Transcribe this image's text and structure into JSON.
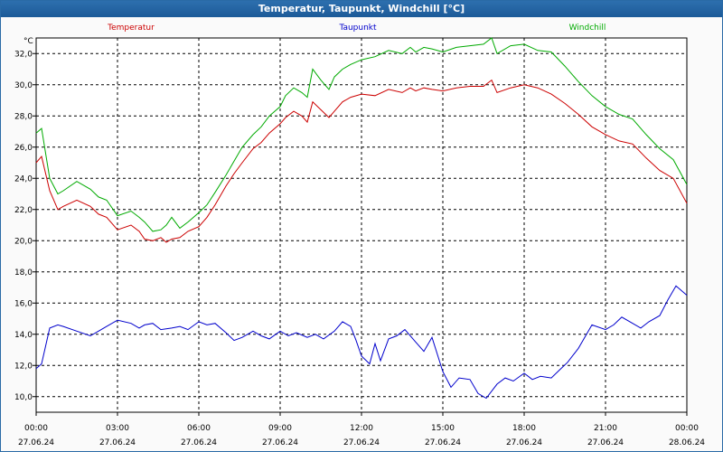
{
  "window": {
    "title": "Temperatur, Taupunkt, Windchill [°C]"
  },
  "chart_data": {
    "type": "line",
    "title": "Temperatur, Taupunkt, Windchill [°C]",
    "ylabel": "°C",
    "ylim": [
      9.0,
      33.0
    ],
    "y_ticks": [
      "10,0",
      "12,0",
      "14,0",
      "16,0",
      "18,0",
      "20,0",
      "22,0",
      "24,0",
      "26,0",
      "28,0",
      "30,0",
      "32,0"
    ],
    "y_tick_values": [
      10,
      12,
      14,
      16,
      18,
      20,
      22,
      24,
      26,
      28,
      30,
      32
    ],
    "xlim": [
      0,
      24
    ],
    "x_tick_values": [
      0,
      3,
      6,
      9,
      12,
      15,
      18,
      21,
      24
    ],
    "x_ticks": [
      {
        "time": "00:00",
        "date": "27.06.24"
      },
      {
        "time": "03:00",
        "date": "27.06.24"
      },
      {
        "time": "06:00",
        "date": "27.06.24"
      },
      {
        "time": "09:00",
        "date": "27.06.24"
      },
      {
        "time": "12:00",
        "date": "27.06.24"
      },
      {
        "time": "15:00",
        "date": "27.06.24"
      },
      {
        "time": "18:00",
        "date": "27.06.24"
      },
      {
        "time": "21:00",
        "date": "27.06.24"
      },
      {
        "time": "00:00",
        "date": "28.06.24"
      }
    ],
    "grid": true,
    "legend_position": "top",
    "series": [
      {
        "name": "Temperatur",
        "color": "#cc0000",
        "x": [
          0,
          0.2,
          0.5,
          0.8,
          1.0,
          1.5,
          2.0,
          2.3,
          2.6,
          3.0,
          3.5,
          3.8,
          4.0,
          4.3,
          4.6,
          4.8,
          5.0,
          5.3,
          5.6,
          6.0,
          6.3,
          6.6,
          7.0,
          7.3,
          7.6,
          8.0,
          8.3,
          8.6,
          9.0,
          9.2,
          9.5,
          9.8,
          10.0,
          10.2,
          10.5,
          10.8,
          11.0,
          11.3,
          11.6,
          12.0,
          12.5,
          13.0,
          13.5,
          13.8,
          14.0,
          14.3,
          14.6,
          15.0,
          15.5,
          16.0,
          16.5,
          16.8,
          17.0,
          17.5,
          18.0,
          18.5,
          19.0,
          19.5,
          20.0,
          20.5,
          21.0,
          21.5,
          22.0,
          22.5,
          23.0,
          23.5,
          24.0
        ],
        "values": [
          25.0,
          25.4,
          23.2,
          22.0,
          22.2,
          22.6,
          22.2,
          21.7,
          21.5,
          20.7,
          21.0,
          20.6,
          20.1,
          20.0,
          20.2,
          19.9,
          20.1,
          20.2,
          20.6,
          20.9,
          21.5,
          22.3,
          23.5,
          24.3,
          25.0,
          25.9,
          26.3,
          26.9,
          27.5,
          27.9,
          28.3,
          28.0,
          27.6,
          28.9,
          28.4,
          27.9,
          28.3,
          28.9,
          29.2,
          29.4,
          29.3,
          29.7,
          29.5,
          29.8,
          29.6,
          29.8,
          29.7,
          29.6,
          29.8,
          29.9,
          29.9,
          30.3,
          29.5,
          29.8,
          30.0,
          29.8,
          29.4,
          28.8,
          28.1,
          27.3,
          26.8,
          26.4,
          26.2,
          25.3,
          24.5,
          24.0,
          22.4
        ]
      },
      {
        "name": "Taupunkt",
        "color": "#0000cc",
        "x": [
          0,
          0.2,
          0.5,
          0.8,
          1.0,
          1.5,
          2.0,
          2.3,
          2.6,
          3.0,
          3.5,
          3.8,
          4.0,
          4.3,
          4.6,
          5.0,
          5.3,
          5.6,
          6.0,
          6.3,
          6.6,
          7.0,
          7.3,
          7.6,
          8.0,
          8.3,
          8.6,
          9.0,
          9.3,
          9.6,
          10.0,
          10.3,
          10.6,
          11.0,
          11.3,
          11.6,
          11.8,
          12.0,
          12.3,
          12.5,
          12.7,
          13.0,
          13.3,
          13.6,
          14.0,
          14.3,
          14.6,
          15.0,
          15.3,
          15.6,
          16.0,
          16.3,
          16.6,
          17.0,
          17.3,
          17.6,
          18.0,
          18.3,
          18.6,
          19.0,
          19.3,
          19.6,
          20.0,
          20.5,
          21.0,
          21.3,
          21.6,
          22.0,
          22.3,
          22.6,
          23.0,
          23.3,
          23.6,
          24.0
        ],
        "values": [
          11.8,
          12.1,
          14.4,
          14.6,
          14.5,
          14.2,
          13.9,
          14.2,
          14.5,
          14.9,
          14.7,
          14.4,
          14.6,
          14.7,
          14.3,
          14.4,
          14.5,
          14.3,
          14.8,
          14.6,
          14.7,
          14.1,
          13.6,
          13.8,
          14.2,
          13.9,
          13.7,
          14.2,
          13.9,
          14.1,
          13.8,
          14.0,
          13.7,
          14.2,
          14.8,
          14.5,
          13.6,
          12.6,
          12.1,
          13.4,
          12.3,
          13.7,
          13.9,
          14.3,
          13.5,
          12.9,
          13.8,
          11.6,
          10.6,
          11.2,
          11.1,
          10.2,
          9.9,
          10.8,
          11.2,
          11.0,
          11.5,
          11.1,
          11.3,
          11.2,
          11.7,
          12.2,
          13.1,
          14.6,
          14.3,
          14.6,
          15.1,
          14.7,
          14.4,
          14.8,
          15.2,
          16.2,
          17.1,
          16.5
        ]
      },
      {
        "name": "Windchill",
        "color": "#00aa00",
        "x": [
          0,
          0.2,
          0.5,
          0.8,
          1.0,
          1.5,
          2.0,
          2.3,
          2.6,
          3.0,
          3.5,
          3.8,
          4.0,
          4.3,
          4.6,
          4.8,
          5.0,
          5.3,
          5.6,
          6.0,
          6.3,
          6.6,
          7.0,
          7.3,
          7.6,
          8.0,
          8.3,
          8.6,
          9.0,
          9.2,
          9.5,
          9.8,
          10.0,
          10.2,
          10.5,
          10.8,
          11.0,
          11.3,
          11.6,
          12.0,
          12.5,
          13.0,
          13.5,
          13.8,
          14.0,
          14.3,
          14.6,
          15.0,
          15.5,
          16.0,
          16.5,
          16.8,
          17.0,
          17.5,
          18.0,
          18.5,
          19.0,
          19.5,
          20.0,
          20.5,
          21.0,
          21.5,
          22.0,
          22.5,
          23.0,
          23.5,
          24.0
        ],
        "values": [
          26.9,
          27.2,
          24.0,
          23.0,
          23.2,
          23.8,
          23.3,
          22.8,
          22.6,
          21.6,
          21.9,
          21.5,
          21.2,
          20.6,
          20.7,
          21.0,
          21.5,
          20.8,
          21.2,
          21.8,
          22.3,
          23.1,
          24.2,
          25.1,
          26.0,
          26.8,
          27.3,
          28.0,
          28.6,
          29.3,
          29.8,
          29.5,
          29.2,
          31.0,
          30.3,
          29.7,
          30.5,
          31.0,
          31.3,
          31.6,
          31.8,
          32.2,
          32.0,
          32.4,
          32.1,
          32.4,
          32.3,
          32.1,
          32.4,
          32.5,
          32.6,
          33.0,
          32.0,
          32.5,
          32.6,
          32.2,
          32.1,
          31.2,
          30.2,
          29.3,
          28.6,
          28.1,
          27.8,
          26.8,
          25.9,
          25.2,
          23.6
        ]
      }
    ]
  }
}
